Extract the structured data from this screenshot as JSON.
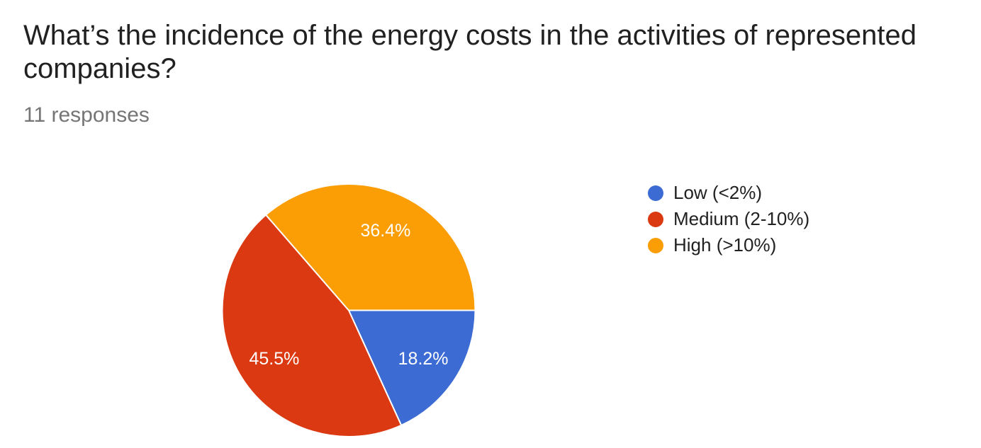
{
  "header": {
    "title": "What’s the incidence of the energy costs in the activities of represented companies?",
    "responses_text": "11 responses"
  },
  "chart_data": {
    "type": "pie",
    "title": "What’s the incidence of the energy costs in the activities of represented companies?",
    "subtitle": "11 responses",
    "total_responses": 11,
    "categories": [
      "Low (<2%)",
      "Medium (2-10%)",
      "High (>10%)"
    ],
    "values": [
      18.2,
      45.5,
      36.4
    ],
    "slice_labels": [
      "18.2%",
      "45.5%",
      "36.4%"
    ],
    "colors": [
      "#3c6bd4",
      "#db3912",
      "#fb9d04"
    ],
    "label_text_color": "#ffffff",
    "slice_separator_color": "#ffffff",
    "legend_position": "right",
    "start_angle_deg": 0,
    "direction": "clockwise"
  }
}
